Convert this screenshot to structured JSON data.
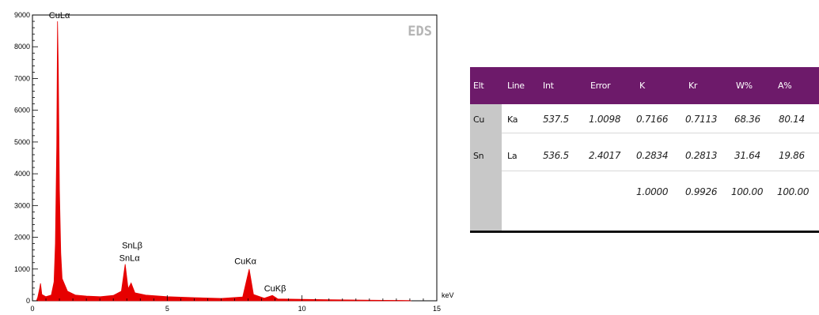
{
  "chart_data": {
    "type": "area",
    "title": "EDS",
    "xlabel": "keV",
    "ylabel": "",
    "xlim": [
      0,
      15
    ],
    "ylim": [
      0,
      9000
    ],
    "x_ticks": [
      0,
      5,
      10,
      15
    ],
    "y_ticks": [
      0,
      1000,
      2000,
      3000,
      4000,
      5000,
      6000,
      7000,
      8000,
      9000
    ],
    "grid": false,
    "series_color": "#e60000",
    "spectrum": {
      "background_start": 0.2,
      "background_end": 14.0,
      "points": [
        [
          0.15,
          0
        ],
        [
          0.2,
          120
        ],
        [
          0.27,
          400
        ],
        [
          0.3,
          550
        ],
        [
          0.35,
          200
        ],
        [
          0.5,
          130
        ],
        [
          0.7,
          180
        ],
        [
          0.8,
          600
        ],
        [
          0.85,
          1800
        ],
        [
          0.9,
          4900
        ],
        [
          0.93,
          8800
        ],
        [
          0.96,
          7300
        ],
        [
          1.0,
          3500
        ],
        [
          1.05,
          1500
        ],
        [
          1.1,
          700
        ],
        [
          1.3,
          300
        ],
        [
          1.6,
          180
        ],
        [
          2.0,
          150
        ],
        [
          2.5,
          130
        ],
        [
          3.0,
          170
        ],
        [
          3.3,
          300
        ],
        [
          3.44,
          1150
        ],
        [
          3.55,
          380
        ],
        [
          3.66,
          560
        ],
        [
          3.8,
          250
        ],
        [
          4.2,
          180
        ],
        [
          5.0,
          130
        ],
        [
          6.0,
          100
        ],
        [
          7.0,
          75
        ],
        [
          7.8,
          120
        ],
        [
          8.04,
          1000
        ],
        [
          8.2,
          200
        ],
        [
          8.6,
          80
        ],
        [
          8.9,
          170
        ],
        [
          9.1,
          60
        ],
        [
          10.0,
          45
        ],
        [
          11.0,
          35
        ],
        [
          12.0,
          25
        ],
        [
          13.0,
          15
        ],
        [
          14.0,
          10
        ],
        [
          14.05,
          0
        ]
      ]
    },
    "annotations": [
      {
        "text": "CuLα",
        "x": 1.0,
        "y": 8900
      },
      {
        "text": "SnLβ",
        "x": 3.7,
        "y": 1650
      },
      {
        "text": "SnLα",
        "x": 3.6,
        "y": 1250
      },
      {
        "text": "CuKα",
        "x": 7.9,
        "y": 1150
      },
      {
        "text": "CuKβ",
        "x": 9.0,
        "y": 300
      }
    ]
  },
  "table": {
    "headers": [
      "Elt",
      "Line",
      "Int",
      "Error",
      "K",
      "Kr",
      "W%",
      "A%"
    ],
    "rows": [
      [
        "Cu",
        "Ka",
        "537.5",
        "1.0098",
        "0.7166",
        "0.7113",
        "68.36",
        "80.14"
      ],
      [
        "Sn",
        "La",
        "536.5",
        "2.4017",
        "0.2834",
        "0.2813",
        "31.64",
        "19.86"
      ],
      [
        "",
        "",
        "",
        "",
        "1.0000",
        "0.9926",
        "100.00",
        "100.00"
      ]
    ]
  }
}
